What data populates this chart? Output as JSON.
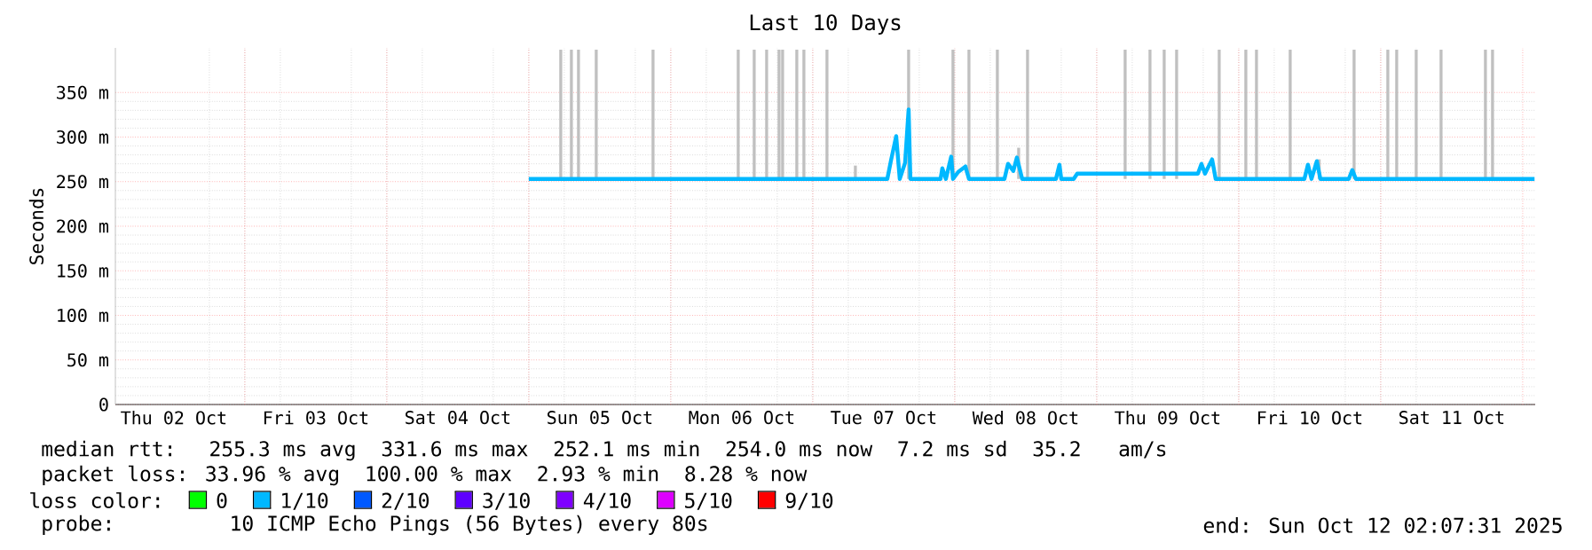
{
  "chart_data": {
    "type": "line",
    "title": "Last 10 Days",
    "ylabel": "Seconds",
    "xlim": [
      "2025-10-02T02:07",
      "2025-10-12T02:07"
    ],
    "ylim": [
      0,
      400
    ],
    "yticks": [
      {
        "value": 0,
        "label": "0"
      },
      {
        "value": 50,
        "label": "50 m"
      },
      {
        "value": 100,
        "label": "100 m"
      },
      {
        "value": 150,
        "label": "150 m"
      },
      {
        "value": 200,
        "label": "200 m"
      },
      {
        "value": 250,
        "label": "250 m"
      },
      {
        "value": 300,
        "label": "300 m"
      },
      {
        "value": 350,
        "label": "350 m"
      }
    ],
    "xticks": [
      {
        "value": "2025-10-02T12:00",
        "label": "Thu 02 Oct"
      },
      {
        "value": "2025-10-03T12:00",
        "label": "Fri 03 Oct"
      },
      {
        "value": "2025-10-04T12:00",
        "label": "Sat 04 Oct"
      },
      {
        "value": "2025-10-05T12:00",
        "label": "Sun 05 Oct"
      },
      {
        "value": "2025-10-06T12:00",
        "label": "Mon 06 Oct"
      },
      {
        "value": "2025-10-07T12:00",
        "label": "Tue 07 Oct"
      },
      {
        "value": "2025-10-08T12:00",
        "label": "Wed 08 Oct"
      },
      {
        "value": "2025-10-09T12:00",
        "label": "Thu 09 Oct"
      },
      {
        "value": "2025-10-10T12:00",
        "label": "Fri 10 Oct"
      },
      {
        "value": "2025-10-11T12:00",
        "label": "Sat 11 Oct"
      },
      {
        "value": "2025-10-03T00:00",
        "label": null
      },
      {
        "value": "2025-10-04T00:00",
        "label": null
      },
      {
        "value": "2025-10-05T00:00",
        "label": null
      },
      {
        "value": "2025-10-06T00:00",
        "label": null
      },
      {
        "value": "2025-10-07T00:00",
        "label": null
      },
      {
        "value": "2025-10-08T00:00",
        "label": null
      },
      {
        "value": "2025-10-09T00:00",
        "label": null
      },
      {
        "value": "2025-10-10T00:00",
        "label": null
      },
      {
        "value": "2025-10-11T00:00",
        "label": null
      },
      {
        "value": "2025-10-12T00:00",
        "label": null
      }
    ],
    "grid": true,
    "legend": "bottom",
    "legend_title": "loss color:",
    "series": [
      {
        "type": "bar",
        "color": "#c0c0c0",
        "x": [
          "2025-10-05T05:24",
          "2025-10-05T07:12",
          "2025-10-05T08:24",
          "2025-10-05T11:24",
          "2025-10-05T21:00",
          "2025-10-06T11:24",
          "2025-10-06T14:06",
          "2025-10-06T16:12",
          "2025-10-06T18:18",
          "2025-10-06T18:54",
          "2025-10-06T21:18",
          "2025-10-06T22:30",
          "2025-10-07T02:24",
          "2025-10-07T07:12",
          "2025-10-07T16:12",
          "2025-10-07T23:42",
          "2025-10-08T02:24",
          "2025-10-08T07:12",
          "2025-10-08T10:48",
          "2025-10-08T12:18",
          "2025-10-09T04:48",
          "2025-10-09T09:00",
          "2025-10-09T11:24",
          "2025-10-09T13:30",
          "2025-10-09T20:42",
          "2025-10-10T01:12",
          "2025-10-10T03:00",
          "2025-10-10T08:42",
          "2025-10-10T13:36",
          "2025-10-10T19:30",
          "2025-10-11T01:12",
          "2025-10-11T02:42",
          "2025-10-11T06:00",
          "2025-10-11T10:12",
          "2025-10-11T17:42",
          "2025-10-11T18:54"
        ],
        "base": [
          253,
          253,
          253,
          253,
          253,
          253,
          253,
          253,
          253,
          253,
          253,
          253,
          253,
          253,
          253,
          253,
          253,
          253,
          253,
          253,
          253,
          253,
          253,
          253,
          253,
          253,
          253,
          253,
          253,
          253,
          253,
          253,
          253,
          253,
          253,
          253
        ],
        "values": [
          145,
          145,
          145,
          145,
          145,
          145,
          145,
          145,
          145,
          145,
          145,
          145,
          145,
          15,
          145,
          145,
          145,
          145,
          35,
          145,
          145,
          145,
          145,
          145,
          145,
          145,
          145,
          145,
          22,
          145,
          145,
          145,
          145,
          145,
          145,
          145
        ]
      },
      {
        "color": "#00b8ff",
        "x": [
          "2025-10-05T00:00",
          "2025-10-07T12:36",
          "2025-10-07T13:12",
          "2025-10-07T14:06",
          "2025-10-07T14:42",
          "2025-10-07T15:36",
          "2025-10-07T16:12",
          "2025-10-07T16:30",
          "2025-10-07T21:36",
          "2025-10-07T21:54",
          "2025-10-07T22:30",
          "2025-10-07T23:24",
          "2025-10-07T23:42",
          "2025-10-08T00:36",
          "2025-10-08T01:48",
          "2025-10-08T02:24",
          "2025-10-08T08:24",
          "2025-10-08T09:00",
          "2025-10-08T09:54",
          "2025-10-08T10:30",
          "2025-10-08T11:24",
          "2025-10-08T17:06",
          "2025-10-08T17:42",
          "2025-10-08T18:00",
          "2025-10-08T20:06",
          "2025-10-08T20:42",
          "2025-10-09T17:06",
          "2025-10-09T17:42",
          "2025-10-09T18:18",
          "2025-10-09T19:30",
          "2025-10-09T20:06",
          "2025-10-10T11:06",
          "2025-10-10T11:42",
          "2025-10-10T12:18",
          "2025-10-10T13:12",
          "2025-10-10T13:48",
          "2025-10-10T18:36",
          "2025-10-10T19:12",
          "2025-10-10T19:48",
          "2025-10-12T02:00"
        ],
        "values": [
          253,
          253,
          273,
          301,
          253,
          271,
          331,
          253,
          253,
          265,
          253,
          278,
          253,
          261,
          267,
          253,
          253,
          270,
          262,
          277,
          253,
          253,
          269,
          253,
          253,
          259,
          259,
          270,
          259,
          275,
          253,
          253,
          269,
          253,
          273,
          253,
          253,
          263,
          253,
          253
        ]
      },
      {
        "name": "0",
        "color": "#00ff00"
      },
      {
        "name": "1/10",
        "color": "#00b8ff"
      },
      {
        "name": "2/10",
        "color": "#0059ff"
      },
      {
        "name": "3/10",
        "color": "#5e00ff"
      },
      {
        "name": "4/10",
        "color": "#7e00ff"
      },
      {
        "name": "5/10",
        "color": "#dd00ff"
      },
      {
        "name": "9/10",
        "color": "#ff0000"
      }
    ],
    "annotations": [
      "median rtt:  255.3 ms avg  331.6 ms max  252.1 ms min  254.0 ms now  7.2 ms sd  35.2   am/s",
      "packet loss: 33.96 % avg  100.00 % max  2.93 % min  8.28 % now",
      "probe:       10 ICMP Echo Pings (56 Bytes) every 80s",
      "end: Sun Oct 12 02:07:31 2025"
    ]
  }
}
